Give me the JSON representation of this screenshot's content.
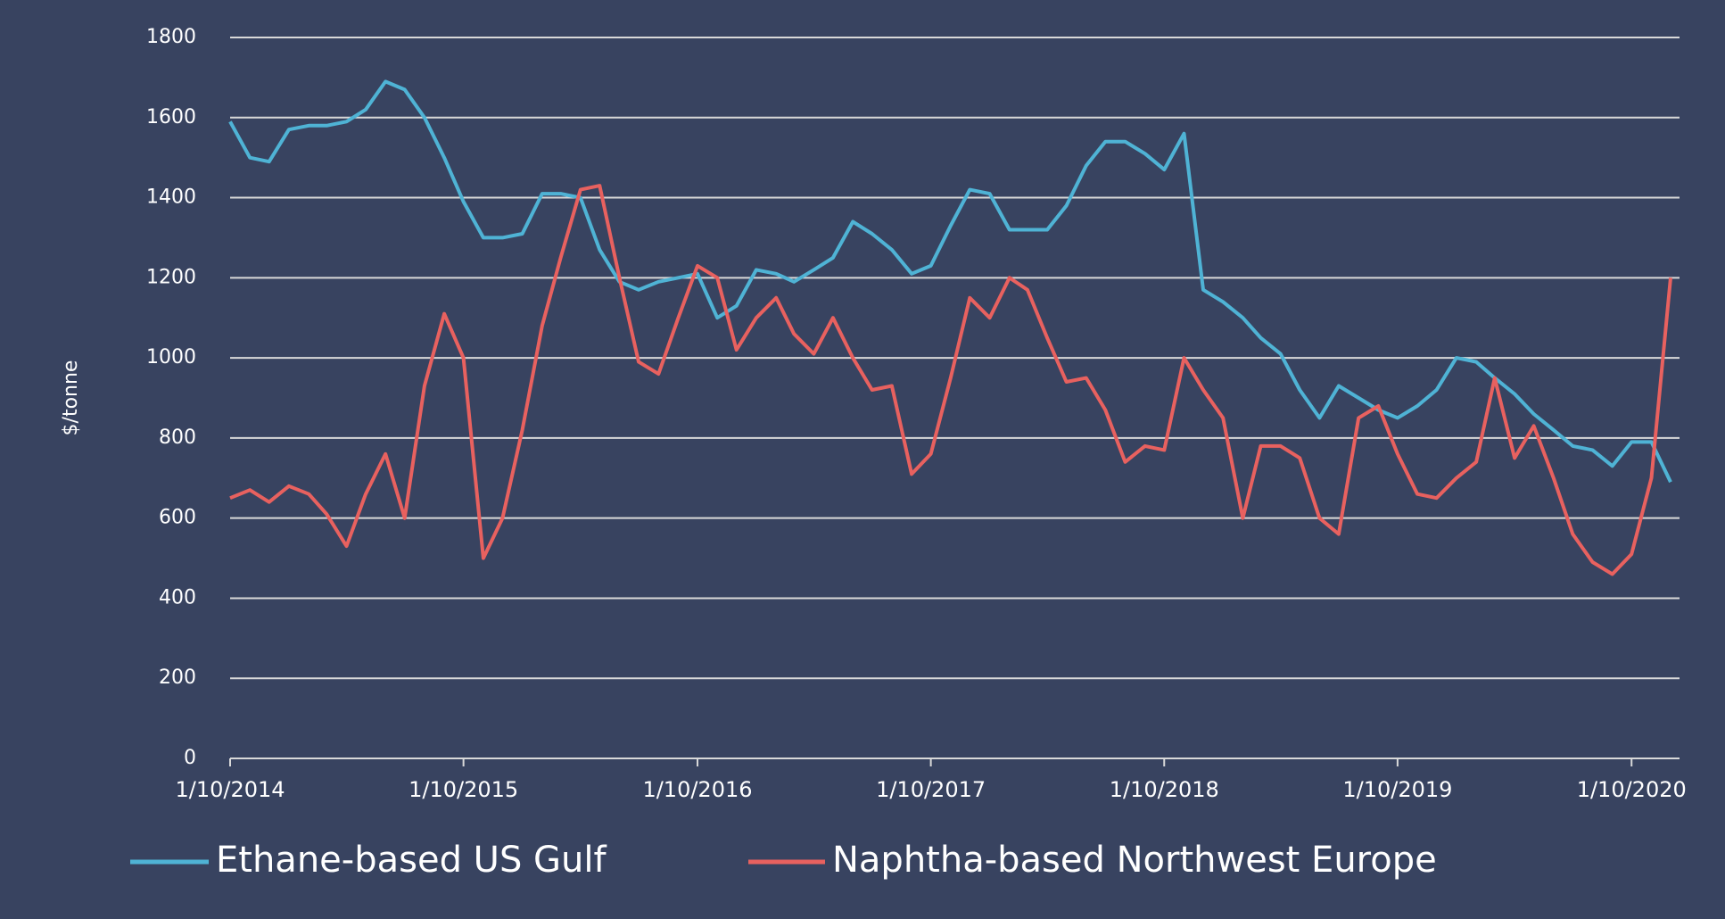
{
  "chart_data": {
    "type": "line",
    "ylabel": "$/tonne",
    "x": [
      "1/10/2014",
      "1/11/2014",
      "1/12/2014",
      "1/1/2015",
      "1/2/2015",
      "1/3/2015",
      "1/4/2015",
      "1/5/2015",
      "1/6/2015",
      "1/7/2015",
      "1/8/2015",
      "1/9/2015",
      "1/10/2015",
      "1/11/2015",
      "1/12/2015",
      "1/1/2016",
      "1/2/2016",
      "1/3/2016",
      "1/4/2016",
      "1/5/2016",
      "1/6/2016",
      "1/7/2016",
      "1/8/2016",
      "1/9/2016",
      "1/10/2016",
      "1/11/2016",
      "1/12/2016",
      "1/1/2017",
      "1/2/2017",
      "1/3/2017",
      "1/4/2017",
      "1/5/2017",
      "1/6/2017",
      "1/7/2017",
      "1/8/2017",
      "1/9/2017",
      "1/10/2017",
      "1/11/2017",
      "1/12/2017",
      "1/1/2018",
      "1/2/2018",
      "1/3/2018",
      "1/4/2018",
      "1/5/2018",
      "1/6/2018",
      "1/7/2018",
      "1/8/2018",
      "1/9/2018",
      "1/10/2018",
      "1/11/2018",
      "1/12/2018",
      "1/1/2019",
      "1/2/2019",
      "1/3/2019",
      "1/4/2019",
      "1/5/2019",
      "1/6/2019",
      "1/7/2019",
      "1/8/2019",
      "1/9/2019",
      "1/10/2019",
      "1/11/2019",
      "1/12/2019",
      "1/1/2020",
      "1/2/2020",
      "1/3/2020",
      "1/4/2020",
      "1/5/2020",
      "1/6/2020",
      "1/7/2020",
      "1/8/2020",
      "1/9/2020",
      "1/10/2020",
      "1/11/2020",
      "1/12/2020"
    ],
    "series": [
      {
        "name": "Ethane-based US Gulf",
        "color": "#4fb3d5",
        "values": [
          1590,
          1500,
          1490,
          1570,
          1580,
          1580,
          1590,
          1620,
          1690,
          1670,
          1600,
          1500,
          1390,
          1300,
          1300,
          1310,
          1410,
          1410,
          1400,
          1270,
          1190,
          1170,
          1190,
          1200,
          1210,
          1100,
          1130,
          1220,
          1210,
          1190,
          1220,
          1250,
          1340,
          1310,
          1270,
          1210,
          1230,
          1330,
          1420,
          1410,
          1320,
          1320,
          1320,
          1380,
          1480,
          1540,
          1540,
          1510,
          1470,
          1560,
          1170,
          1140,
          1100,
          1050,
          1010,
          920,
          850,
          930,
          900,
          870,
          850,
          880,
          920,
          1000,
          990,
          950,
          910,
          860,
          820,
          780,
          770,
          730,
          790,
          790,
          690
        ]
      },
      {
        "name": "Naphtha-based Northwest Europe",
        "color": "#e8615f",
        "values": [
          650,
          670,
          640,
          680,
          660,
          610,
          530,
          660,
          760,
          600,
          930,
          1110,
          1000,
          500,
          600,
          820,
          1080,
          1250,
          1420,
          1430,
          1200,
          990,
          960,
          1100,
          1230,
          1200,
          1020,
          1100,
          1150,
          1060,
          1010,
          1100,
          1000,
          920,
          930,
          710,
          760,
          950,
          1150,
          1100,
          1200,
          1170,
          1050,
          940,
          950,
          870,
          740,
          780,
          770,
          1000,
          920,
          850,
          600,
          780,
          780,
          750,
          600,
          560,
          850,
          880,
          760,
          660,
          650,
          700,
          740,
          950,
          750,
          830,
          700,
          560,
          490,
          460,
          510,
          700,
          1200
        ]
      }
    ],
    "xlim": [
      "1/10/2014",
      "15/12/2020"
    ],
    "xticks": [
      "1/10/2014",
      "1/10/2015",
      "1/10/2016",
      "1/10/2017",
      "1/10/2018",
      "1/10/2019",
      "1/10/2020"
    ],
    "ylim": [
      0,
      1800
    ],
    "yticks": [
      0,
      200,
      400,
      600,
      800,
      1000,
      1200,
      1400,
      1600,
      1800
    ],
    "grid": true,
    "legend": "bottom"
  }
}
